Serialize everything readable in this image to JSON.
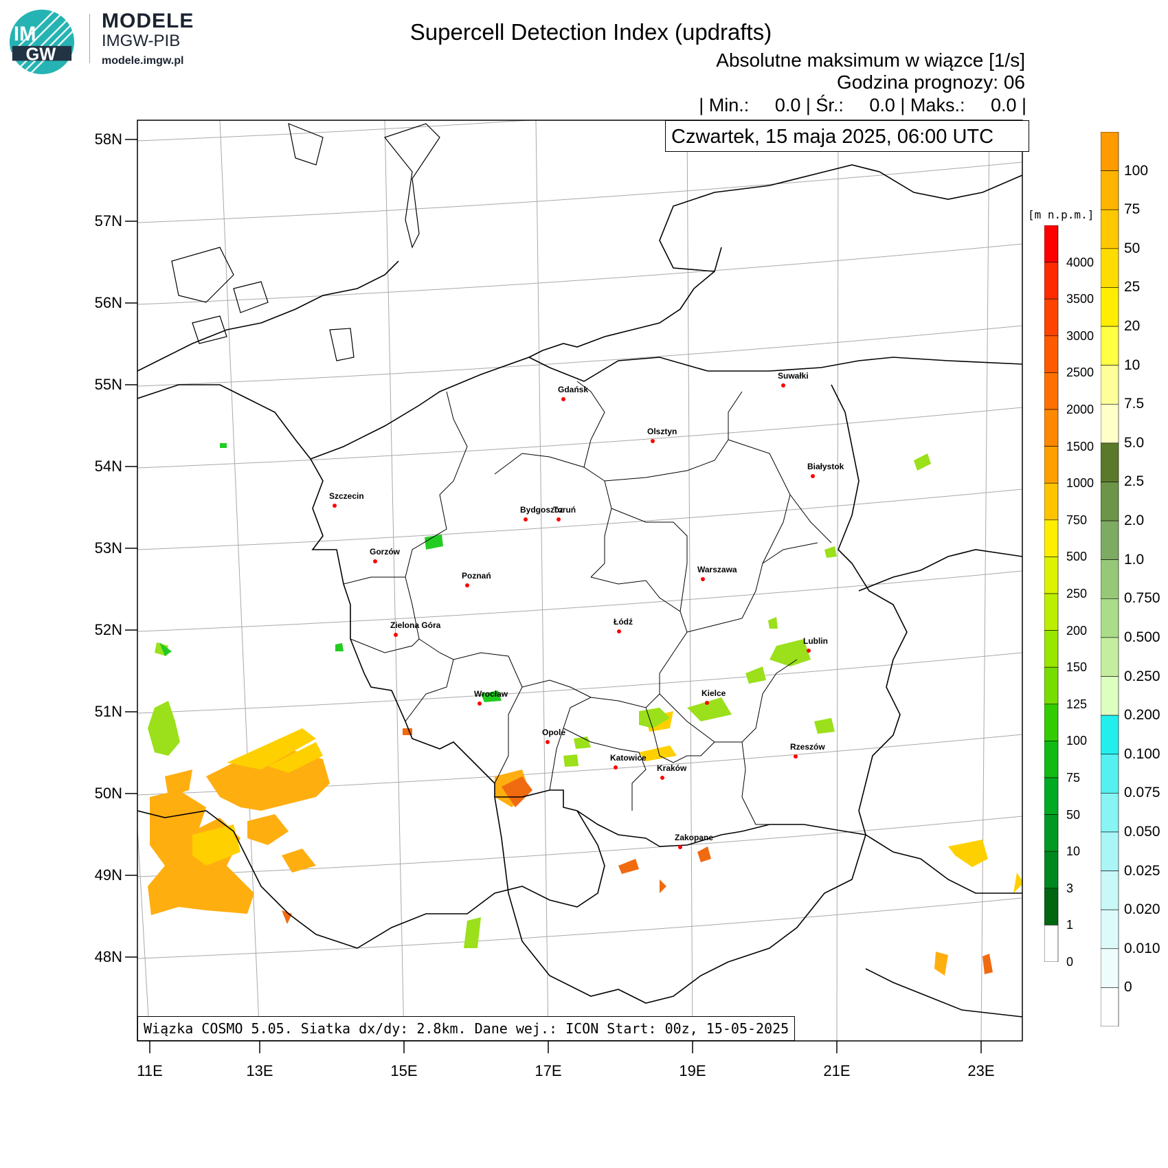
{
  "brand": {
    "line1": "MODELE",
    "line2": "IMGW-PIB",
    "line3": "modele.imgw.pl",
    "logo_text_top": "IM",
    "logo_text_bottom": "GW"
  },
  "header": {
    "title": "Supercell Detection Index (updrafts)",
    "subtitle1": "Absolutne maksimum w wiązce [1/s]",
    "subtitle2": "Godzina prognozy: 06",
    "stats": "| Min.:     0.0 | Śr.:     0.0 | Maks.:     0.0 |",
    "date": "Czwartek, 15 maja 2025, 06:00 UTC"
  },
  "footer": {
    "text": "Wiązka COSMO 5.05. Siatka dx/dy: 2.8km. Dane wej.: ICON Start: 00z, 15-05-2025"
  },
  "axes": {
    "lat_labels": [
      "58N",
      "57N",
      "56N",
      "55N",
      "54N",
      "53N",
      "52N",
      "51N",
      "50N",
      "49N",
      "48N"
    ],
    "lon_labels": [
      "11E",
      "13E",
      "15E",
      "17E",
      "19E",
      "21E",
      "23E"
    ]
  },
  "cities": [
    {
      "name": "Gdańsk"
    },
    {
      "name": "Suwałki"
    },
    {
      "name": "Olsztyn"
    },
    {
      "name": "Białystok"
    },
    {
      "name": "Szczecin"
    },
    {
      "name": "Bydgoszcz"
    },
    {
      "name": "Toruń"
    },
    {
      "name": "Gorzów"
    },
    {
      "name": "Poznań"
    },
    {
      "name": "Warszawa"
    },
    {
      "name": "Zielona Góra"
    },
    {
      "name": "Łódź"
    },
    {
      "name": "Lublin"
    },
    {
      "name": "Wrocław"
    },
    {
      "name": "Kielce"
    },
    {
      "name": "Opole"
    },
    {
      "name": "Rzeszów"
    },
    {
      "name": "Katowice"
    },
    {
      "name": "Kraków"
    },
    {
      "name": "Zakopane"
    }
  ],
  "elevation_legend": {
    "title": "[m n.p.m.]",
    "labels": [
      "4000",
      "3500",
      "3000",
      "2500",
      "2000",
      "1500",
      "1000",
      "750",
      "500",
      "250",
      "200",
      "150",
      "125",
      "100",
      "75",
      "50",
      "10",
      "3",
      "1",
      "0"
    ],
    "colors": [
      "#ff0000",
      "#ff2a00",
      "#ff4400",
      "#ff5a00",
      "#ff7000",
      "#ff8800",
      "#ffa000",
      "#ffc400",
      "#ffee00",
      "#ddf200",
      "#bbee00",
      "#99e600",
      "#77dd00",
      "#33cc00",
      "#11bb11",
      "#00aa22",
      "#009922",
      "#008820",
      "#006610",
      "#ffffff"
    ]
  },
  "sdi_legend": {
    "labels": [
      "100",
      "75",
      "50",
      "25",
      "20",
      "10",
      "7.5",
      "5.0",
      "2.5",
      "2.0",
      "1.0",
      "0.750",
      "0.500",
      "0.250",
      "0.200",
      "0.100",
      "0.075",
      "0.050",
      "0.025",
      "0.020",
      "0.010",
      "0"
    ],
    "colors": [
      "#ff9a00",
      "#ffb400",
      "#ffc800",
      "#ffdc00",
      "#ffee00",
      "#ffff44",
      "#ffff99",
      "#ffffc8",
      "#5a7a2a",
      "#6d9548",
      "#7dab62",
      "#96c878",
      "#aadd88",
      "#c4ee9e",
      "#dcffc0",
      "#22eeee",
      "#55f0f0",
      "#88f4f4",
      "#aaf6f6",
      "#c8f8f8",
      "#ddfafa",
      "#eefcfc",
      "#ffffff"
    ]
  },
  "colors": {
    "land_border": "#000000",
    "grid": "#a0a0a0",
    "city_dot": "#ff0000",
    "logo_primary": "#1aa8a8",
    "logo_dark": "#223344"
  }
}
